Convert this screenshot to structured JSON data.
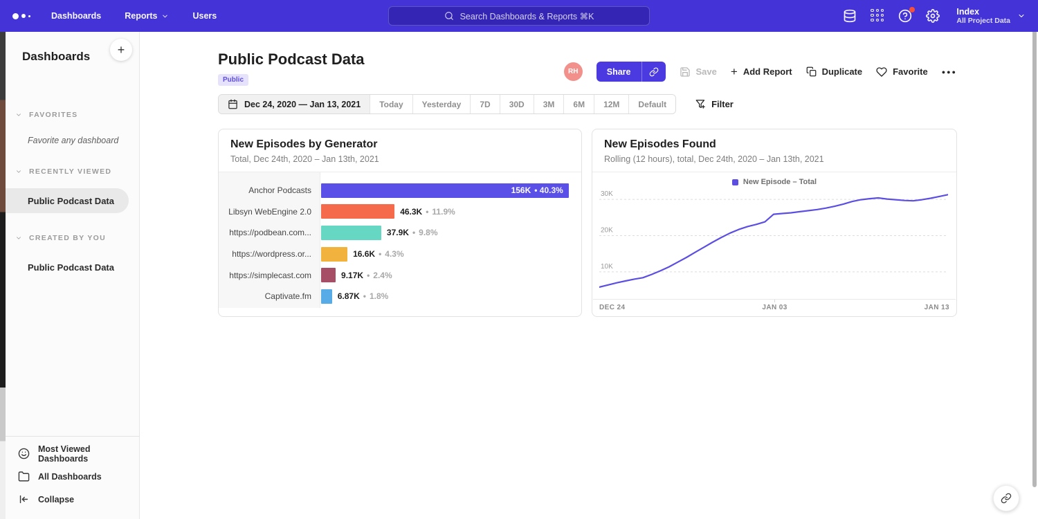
{
  "colors": {
    "nav_bg": "#4434D8",
    "accent": "#4A3AE0",
    "line": "#5B4EE0",
    "avatar_bg": "#F2918C",
    "badge_bg": "#E7E2FB",
    "badge_text": "#5D4FE0",
    "notification_dot": "#F5503C"
  },
  "nav": {
    "items": [
      {
        "label": "Dashboards",
        "chevron": false
      },
      {
        "label": "Reports",
        "chevron": true
      },
      {
        "label": "Users",
        "chevron": false
      }
    ],
    "search_placeholder": "Search Dashboards & Reports ⌘K",
    "icons": [
      {
        "name": "data-icon",
        "badge": false
      },
      {
        "name": "apps-grid-icon",
        "badge": false
      },
      {
        "name": "help-icon",
        "badge": true
      },
      {
        "name": "settings-icon",
        "badge": false
      }
    ],
    "project": {
      "name": "Index",
      "scope": "All Project Data"
    }
  },
  "sidebar": {
    "title": "Dashboards",
    "sections": [
      {
        "display": "FAVORITES",
        "empty_text": "Favorite any dashboard",
        "items": []
      },
      {
        "display": "RECENTLY VIEWED",
        "empty_text": "",
        "items": [
          {
            "label": "Public Podcast Data",
            "active": true
          }
        ]
      },
      {
        "display": "CREATED BY YOU",
        "empty_text": "",
        "items": [
          {
            "label": "Public Podcast Data",
            "active": false
          }
        ]
      }
    ],
    "footer": [
      {
        "label": "Most Viewed Dashboards",
        "icon": "smiley-icon"
      },
      {
        "label": "All Dashboards",
        "icon": "folder-icon"
      },
      {
        "label": "Collapse",
        "icon": "collapse-icon"
      }
    ]
  },
  "header": {
    "title": "Public Podcast Data",
    "badge": "Public",
    "avatar_initials": "RH",
    "share_label": "Share",
    "save_label": "Save",
    "add_report_label": "Add Report",
    "duplicate_label": "Duplicate",
    "favorite_label": "Favorite"
  },
  "toolbar": {
    "date_range": "Dec 24, 2020 — Jan 13, 2021",
    "presets": [
      "Today",
      "Yesterday",
      "7D",
      "30D",
      "3M",
      "6M",
      "12M",
      "Default"
    ],
    "filter_label": "Filter"
  },
  "chart_data": [
    {
      "type": "bar",
      "orientation": "horizontal",
      "title": "New Episodes by Generator",
      "subtitle": "Total, Dec 24th, 2020 – Jan 13th, 2021",
      "categories": [
        "Anchor Podcasts",
        "Libsyn WebEngine 2.0",
        "https://podbean.com...",
        "https://wordpress.or...",
        "https://simplecast.com",
        "Captivate.fm"
      ],
      "values": [
        156000,
        46300,
        37900,
        16600,
        9170,
        6870
      ],
      "value_labels": [
        "156K",
        "46.3K",
        "37.9K",
        "16.6K",
        "9.17K",
        "6.87K"
      ],
      "percent_labels": [
        "40.3%",
        "11.9%",
        "9.8%",
        "4.3%",
        "2.4%",
        "1.8%"
      ],
      "bar_colors": [
        "#5A4FE6",
        "#F56A4B",
        "#66D7C3",
        "#F2B33E",
        "#A64E66",
        "#57ACE8"
      ],
      "xlim": [
        0,
        160000
      ]
    },
    {
      "type": "line",
      "title": "New Episodes Found",
      "subtitle": "Rolling (12 hours), total, Dec 24th, 2020 – Jan 13th, 2021",
      "legend": [
        {
          "label": "New Episode – Total",
          "color": "#5B4EE0"
        }
      ],
      "x_ticks": [
        "DEC 24",
        "JAN 03",
        "JAN 13"
      ],
      "y_ticks": [
        {
          "label": "10K",
          "value": 10000
        },
        {
          "label": "20K",
          "value": 20000
        },
        {
          "label": "30K",
          "value": 30000
        }
      ],
      "ylim": [
        3500,
        32500
      ],
      "grid": "dashed-horizontal",
      "legend_position": "top-center",
      "series": [
        {
          "name": "New Episode – Total",
          "values": [
            5800,
            6400,
            7000,
            7500,
            8000,
            8400,
            9300,
            10300,
            11400,
            12700,
            14000,
            15400,
            16800,
            18200,
            19500,
            20700,
            21700,
            22500,
            23100,
            23800,
            25900,
            26100,
            26300,
            26600,
            26900,
            27200,
            27600,
            28100,
            28700,
            29400,
            29900,
            30200,
            30400,
            30100,
            29900,
            29700,
            29600,
            29900,
            30300,
            30800,
            31300
          ]
        }
      ]
    }
  ]
}
